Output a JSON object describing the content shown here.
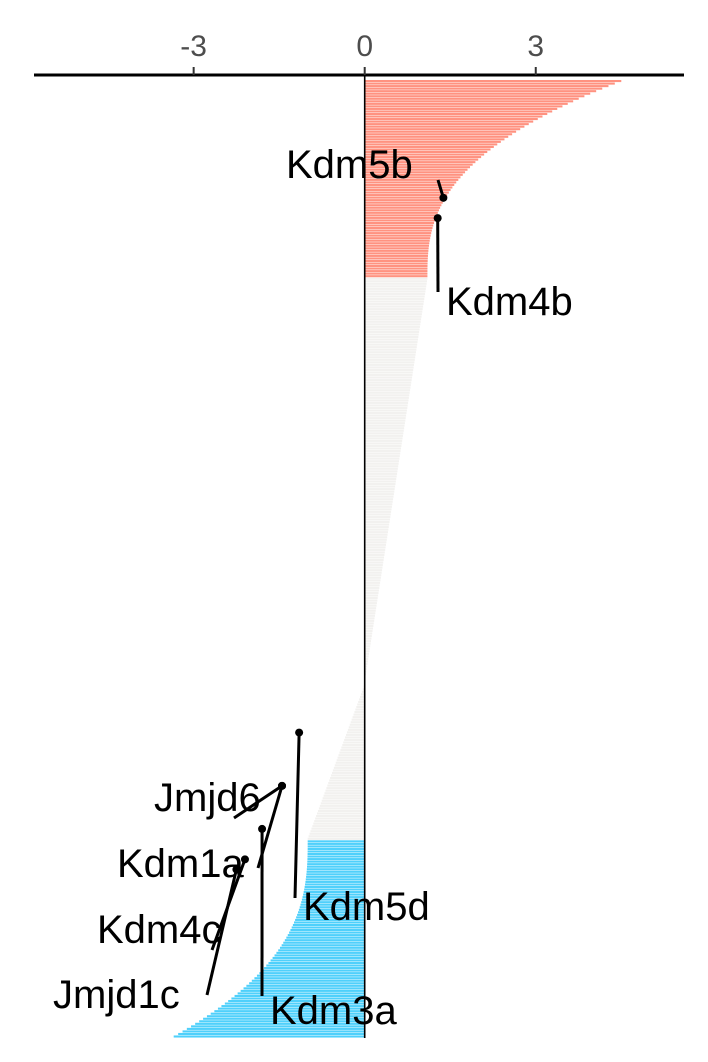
{
  "chart_data": {
    "type": "bar",
    "orientation": "horizontal",
    "sorted": "descending",
    "xlim": [
      -5.8,
      5.6
    ],
    "x_ticks": [
      -3,
      0,
      3
    ],
    "x_tick_labels": [
      "-3",
      "0",
      "3"
    ],
    "axis_position": "top",
    "grid": false,
    "legend": "none",
    "colors": {
      "up": "#ff9280",
      "neutral": "#f2f1ef",
      "down": "#4fd0fb",
      "axis": "#000000",
      "tick_text": "#4d4d4d"
    },
    "groups": [
      {
        "category": "up",
        "count": 78,
        "start": 4.5,
        "end": 1.1
      },
      {
        "category": "neutral",
        "count": 160,
        "start": 1.1,
        "end": 0
      },
      {
        "category": "neutral",
        "count": 62,
        "start": 0,
        "end": -1.0
      },
      {
        "category": "down",
        "count": 78,
        "start": -1.0,
        "end": -3.35
      }
    ],
    "annotations": [
      {
        "label": "Kdm5b",
        "value": 1.38,
        "rank": 46
      },
      {
        "label": "Kdm4b",
        "value": 1.28,
        "rank": 54
      },
      {
        "label": "Kdm5d",
        "value": -1.15,
        "rank": 257
      },
      {
        "label": "Jmjd6",
        "value": -1.45,
        "rank": 278
      },
      {
        "label": "Kdm1a",
        "value": -1.45,
        "rank": 278
      },
      {
        "label": "Kdm3a",
        "value": -1.8,
        "rank": 295
      },
      {
        "label": "Kdm4c",
        "value": -2.1,
        "rank": 307
      },
      {
        "label": "Jmjd1c",
        "value": -2.25,
        "rank": 311
      }
    ]
  }
}
